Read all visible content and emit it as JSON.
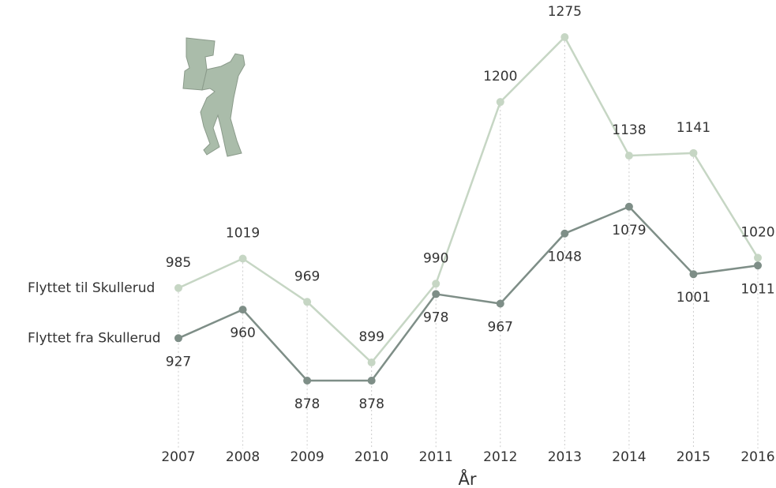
{
  "chart_data": {
    "type": "line",
    "x_label": "År",
    "categories": [
      "2007",
      "2008",
      "2009",
      "2010",
      "2011",
      "2012",
      "2013",
      "2014",
      "2015",
      "2016"
    ],
    "series": [
      {
        "name": "Flyttet til Skullerud",
        "color": "#c6d6c4",
        "values": [
          985,
          1019,
          969,
          899,
          990,
          1200,
          1275,
          1138,
          1141,
          1020
        ]
      },
      {
        "name": "Flyttet fra Skullerud",
        "color": "#7e8e87",
        "values": [
          927,
          960,
          878,
          878,
          978,
          967,
          1048,
          1079,
          1001,
          1011
        ]
      }
    ]
  }
}
